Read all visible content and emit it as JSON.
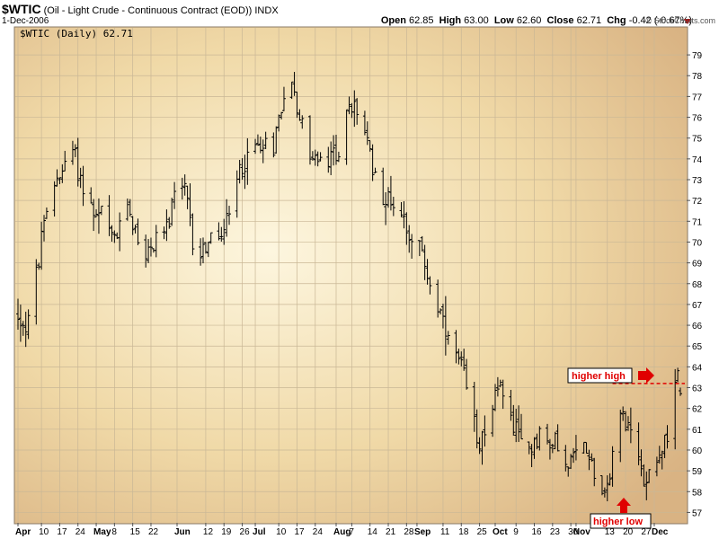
{
  "header": {
    "symbol": "$WTIC",
    "name": "(Oil - Light Crude - Continuous Contract (EOD))",
    "exchange": "INDX",
    "date": "1-Dec-2006",
    "open_label": "Open",
    "open": "62.85",
    "high_label": "High",
    "high": "63.00",
    "low_label": "Low",
    "low": "62.60",
    "close_label": "Close",
    "close": "62.71",
    "chg_label": "Chg",
    "chg": "-0.42 (-0.67%)",
    "copyright": "© StockCharts.com"
  },
  "chart_data": {
    "type": "ohlc",
    "legend": "$WTIC (Daily) 62.71",
    "ylim": [
      56.5,
      80.3
    ],
    "yticks": [
      57,
      58,
      59,
      60,
      61,
      62,
      63,
      64,
      65,
      66,
      67,
      68,
      69,
      70,
      71,
      72,
      73,
      74,
      75,
      76,
      77,
      78,
      79
    ],
    "xlabels": [
      {
        "text": "Apr",
        "bold": true,
        "day": 0
      },
      {
        "text": "10",
        "bold": false,
        "day": 9
      },
      {
        "text": "17",
        "bold": false,
        "day": 16
      },
      {
        "text": "24",
        "bold": false,
        "day": 23
      },
      {
        "text": "May",
        "bold": true,
        "day": 30
      },
      {
        "text": "8",
        "bold": false,
        "day": 37
      },
      {
        "text": "15",
        "bold": false,
        "day": 44
      },
      {
        "text": "22",
        "bold": false,
        "day": 51
      },
      {
        "text": "Jun",
        "bold": true,
        "day": 61
      },
      {
        "text": "12",
        "bold": false,
        "day": 72
      },
      {
        "text": "19",
        "bold": false,
        "day": 79
      },
      {
        "text": "26",
        "bold": false,
        "day": 86
      },
      {
        "text": "Jul",
        "bold": true,
        "day": 91
      },
      {
        "text": "10",
        "bold": false,
        "day": 100
      },
      {
        "text": "17",
        "bold": false,
        "day": 107
      },
      {
        "text": "24",
        "bold": false,
        "day": 114
      },
      {
        "text": "Aug",
        "bold": true,
        "day": 122
      },
      {
        "text": "7",
        "bold": false,
        "day": 128
      },
      {
        "text": "14",
        "bold": false,
        "day": 135
      },
      {
        "text": "21",
        "bold": false,
        "day": 142
      },
      {
        "text": "28",
        "bold": false,
        "day": 149
      },
      {
        "text": "Sep",
        "bold": true,
        "day": 153
      },
      {
        "text": "11",
        "bold": false,
        "day": 163
      },
      {
        "text": "18",
        "bold": false,
        "day": 170
      },
      {
        "text": "25",
        "bold": false,
        "day": 177
      },
      {
        "text": "Oct",
        "bold": true,
        "day": 183
      },
      {
        "text": "9",
        "bold": false,
        "day": 191
      },
      {
        "text": "16",
        "bold": false,
        "day": 198
      },
      {
        "text": "23",
        "bold": false,
        "day": 205
      },
      {
        "text": "30",
        "bold": false,
        "day": 212
      },
      {
        "text": "Nov",
        "bold": true,
        "day": 214
      },
      {
        "text": "13",
        "bold": false,
        "day": 226
      },
      {
        "text": "20",
        "bold": false,
        "day": 233
      },
      {
        "text": "27",
        "bold": false,
        "day": 240
      },
      {
        "text": "Dec",
        "bold": true,
        "day": 244
      }
    ],
    "anchors": [
      [
        0,
        66.5
      ],
      [
        3,
        66.0
      ],
      [
        6,
        67.5
      ],
      [
        9,
        70.0
      ],
      [
        13,
        72.5
      ],
      [
        16,
        73.5
      ],
      [
        19,
        73.5
      ],
      [
        21,
        74.5
      ],
      [
        24,
        73.0
      ],
      [
        27,
        72.0
      ],
      [
        30,
        71.0
      ],
      [
        33,
        71.5
      ],
      [
        36,
        70.0
      ],
      [
        39,
        70.5
      ],
      [
        42,
        72.0
      ],
      [
        45,
        70.5
      ],
      [
        48,
        69.5
      ],
      [
        51,
        69.5
      ],
      [
        54,
        71.0
      ],
      [
        57,
        70.5
      ],
      [
        60,
        72.0
      ],
      [
        64,
        72.5
      ],
      [
        67,
        70.0
      ],
      [
        70,
        69.5
      ],
      [
        73,
        70.0
      ],
      [
        76,
        70.0
      ],
      [
        79,
        70.5
      ],
      [
        82,
        71.5
      ],
      [
        85,
        73.5
      ],
      [
        88,
        74.0
      ],
      [
        91,
        74.5
      ],
      [
        94,
        75.0
      ],
      [
        97,
        74.0
      ],
      [
        100,
        76.0
      ],
      [
        103,
        78.0
      ],
      [
        105,
        77.5
      ],
      [
        108,
        76.0
      ],
      [
        111,
        74.5
      ],
      [
        114,
        74.0
      ],
      [
        117,
        73.5
      ],
      [
        120,
        74.0
      ],
      [
        123,
        74.5
      ],
      [
        126,
        76.0
      ],
      [
        129,
        76.5
      ],
      [
        132,
        76.0
      ],
      [
        135,
        74.0
      ],
      [
        138,
        73.0
      ],
      [
        141,
        72.0
      ],
      [
        144,
        72.0
      ],
      [
        147,
        71.5
      ],
      [
        150,
        70.5
      ],
      [
        153,
        70.0
      ],
      [
        156,
        69.0
      ],
      [
        159,
        67.5
      ],
      [
        162,
        66.5
      ],
      [
        165,
        65.0
      ],
      [
        168,
        64.5
      ],
      [
        171,
        63.5
      ],
      [
        174,
        61.5
      ],
      [
        177,
        60.5
      ],
      [
        180,
        61.5
      ],
      [
        183,
        62.5
      ],
      [
        186,
        63.0
      ],
      [
        189,
        61.5
      ],
      [
        192,
        60.5
      ],
      [
        195,
        60.0
      ],
      [
        198,
        60.5
      ],
      [
        201,
        61.0
      ],
      [
        204,
        60.0
      ],
      [
        207,
        60.5
      ],
      [
        210,
        59.0
      ],
      [
        213,
        59.5
      ],
      [
        216,
        60.5
      ],
      [
        219,
        60.0
      ],
      [
        222,
        58.5
      ],
      [
        225,
        58.0
      ],
      [
        228,
        59.5
      ],
      [
        231,
        62.0
      ],
      [
        234,
        61.0
      ],
      [
        237,
        60.0
      ],
      [
        240,
        58.5
      ],
      [
        243,
        59.5
      ],
      [
        246,
        60.0
      ],
      [
        249,
        60.5
      ],
      [
        251,
        62.0
      ],
      [
        253,
        63.5
      ],
      [
        254,
        62.7
      ]
    ],
    "last_bar": {
      "open": 62.85,
      "high": 63.0,
      "low": 62.6,
      "close": 62.71
    },
    "resistance": 63.2,
    "annotations": [
      {
        "text": "higher high",
        "arrow": "right"
      },
      {
        "text": "higher low",
        "arrow": "up"
      }
    ],
    "grid": true
  }
}
